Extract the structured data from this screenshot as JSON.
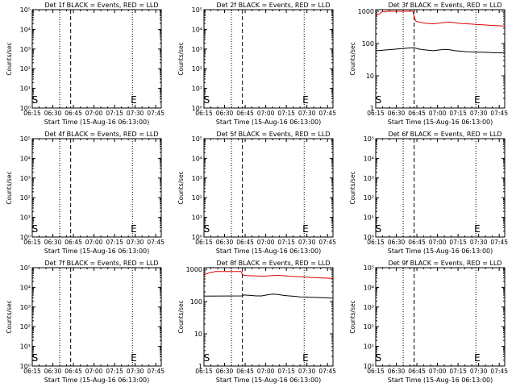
{
  "chart_data": [
    {
      "type": "line",
      "detector": "1f",
      "title": "Det 1f BLACK = Events, RED = LLD",
      "xlabel": "Start Time (15-Aug-16 06:13:00)",
      "ylabel": "Counts/sec",
      "y_log": true,
      "y_ticks": [
        "10⁰",
        "10¹",
        "10²",
        "10³",
        "10⁴",
        "10⁵"
      ],
      "x_ticks": [
        "06:15",
        "06:30",
        "06:45",
        "07:00",
        "07:15",
        "07:30",
        "07:45"
      ],
      "ylim_exp": [
        0,
        5
      ],
      "xlim_min": [
        2,
        96
      ],
      "markers": {
        "S": 4,
        "E": 76
      },
      "vlines": [
        {
          "t": 22,
          "style": "dotted"
        },
        {
          "t": 30,
          "style": "dashed"
        },
        {
          "t": 75,
          "style": "dotted"
        }
      ],
      "series": []
    },
    {
      "type": "line",
      "detector": "2f",
      "title": "Det 2f BLACK = Events, RED = LLD",
      "xlabel": "Start Time (15-Aug-16 06:13:00)",
      "ylabel": "Counts/sec",
      "y_log": true,
      "y_ticks": [
        "10⁰",
        "10¹",
        "10²",
        "10³",
        "10⁴",
        "10⁵"
      ],
      "x_ticks": [
        "06:15",
        "06:30",
        "06:45",
        "07:00",
        "07:15",
        "07:30",
        "07:45"
      ],
      "ylim_exp": [
        0,
        5
      ],
      "xlim_min": [
        2,
        96
      ],
      "markers": {
        "S": 4,
        "E": 76
      },
      "vlines": [
        {
          "t": 22,
          "style": "dotted"
        },
        {
          "t": 30,
          "style": "dashed"
        },
        {
          "t": 75,
          "style": "dotted"
        }
      ],
      "series": []
    },
    {
      "type": "line",
      "detector": "3f",
      "title": "Det 3f BLACK = Events, RED = LLD",
      "xlabel": "Start Time (15-Aug-16 06:13:00)",
      "ylabel": "Counts/sec",
      "y_log": true,
      "y_ticks": [
        "1",
        "10",
        "100",
        "1000"
      ],
      "x_ticks": [
        "06:15",
        "06:30",
        "06:45",
        "07:00",
        "07:15",
        "07:30",
        "07:45"
      ],
      "ylim_exp": [
        0,
        3.05
      ],
      "xlim_min": [
        2,
        96
      ],
      "markers": {
        "S": 4,
        "E": 76
      },
      "vlines": [
        {
          "t": 22,
          "style": "dotted"
        },
        {
          "t": 30,
          "style": "dashed"
        },
        {
          "t": 75,
          "style": "dotted"
        }
      ],
      "series": [
        {
          "color": "#e00000",
          "x": [
            2,
            3,
            5,
            7,
            9,
            10,
            29,
            30,
            31,
            33,
            36,
            40,
            44,
            48,
            52,
            56,
            60,
            64,
            68,
            72,
            76,
            80,
            84,
            88,
            92,
            96
          ],
          "y": [
            700,
            780,
            850,
            1000,
            950,
            1000,
            1000,
            700,
            500,
            470,
            440,
            420,
            410,
            430,
            450,
            460,
            440,
            420,
            410,
            400,
            390,
            380,
            370,
            360,
            355,
            350
          ]
        },
        {
          "color": "#000000",
          "x": [
            2,
            3,
            30,
            31,
            33,
            36,
            40,
            44,
            48,
            52,
            56,
            60,
            64,
            68,
            72,
            76,
            80,
            84,
            88,
            92,
            96
          ],
          "y": [
            62,
            60,
            75,
            72,
            68,
            65,
            62,
            60,
            63,
            66,
            64,
            60,
            58,
            56,
            55,
            54,
            54,
            53,
            52,
            52,
            51
          ]
        }
      ]
    },
    {
      "type": "line",
      "detector": "4f",
      "title": "Det 4f BLACK = Events, RED = LLD",
      "xlabel": "Start Time (15-Aug-16 06:13:00)",
      "ylabel": "Counts/sec",
      "y_log": true,
      "y_ticks": [
        "10⁰",
        "10¹",
        "10²",
        "10³",
        "10⁴",
        "10⁵"
      ],
      "x_ticks": [
        "06:15",
        "06:30",
        "06:45",
        "07:00",
        "07:15",
        "07:30",
        "07:45"
      ],
      "ylim_exp": [
        0,
        5
      ],
      "xlim_min": [
        2,
        96
      ],
      "markers": {
        "S": 4,
        "E": 76
      },
      "vlines": [
        {
          "t": 22,
          "style": "dotted"
        },
        {
          "t": 30,
          "style": "dashed"
        },
        {
          "t": 75,
          "style": "dotted"
        }
      ],
      "series": []
    },
    {
      "type": "line",
      "detector": "5f",
      "title": "Det 5f BLACK = Events, RED = LLD",
      "xlabel": "Start Time (15-Aug-16 06:13:00)",
      "ylabel": "Counts/sec",
      "y_log": true,
      "y_ticks": [
        "10⁰",
        "10¹",
        "10²",
        "10³",
        "10⁴",
        "10⁵"
      ],
      "x_ticks": [
        "06:15",
        "06:30",
        "06:45",
        "07:00",
        "07:15",
        "07:30",
        "07:45"
      ],
      "ylim_exp": [
        0,
        5
      ],
      "xlim_min": [
        2,
        96
      ],
      "markers": {
        "S": 4,
        "E": 76
      },
      "vlines": [
        {
          "t": 22,
          "style": "dotted"
        },
        {
          "t": 30,
          "style": "dashed"
        },
        {
          "t": 75,
          "style": "dotted"
        }
      ],
      "series": []
    },
    {
      "type": "line",
      "detector": "6f",
      "title": "Det 6f BLACK = Events, RED = LLD",
      "xlabel": "Start Time (15-Aug-16 06:13:00)",
      "ylabel": "Counts/sec",
      "y_log": true,
      "y_ticks": [
        "10⁰",
        "10¹",
        "10²",
        "10³",
        "10⁴",
        "10⁵"
      ],
      "x_ticks": [
        "06:15",
        "06:30",
        "06:45",
        "07:00",
        "07:15",
        "07:30",
        "07:45"
      ],
      "ylim_exp": [
        0,
        5
      ],
      "xlim_min": [
        2,
        96
      ],
      "markers": {
        "S": 4,
        "E": 76
      },
      "vlines": [
        {
          "t": 22,
          "style": "dotted"
        },
        {
          "t": 30,
          "style": "dashed"
        },
        {
          "t": 75,
          "style": "dotted"
        }
      ],
      "series": []
    },
    {
      "type": "line",
      "detector": "7f",
      "title": "Det 7f BLACK = Events, RED = LLD",
      "xlabel": "Start Time (15-Aug-16 06:13:00)",
      "ylabel": "Counts/sec",
      "y_log": true,
      "y_ticks": [
        "10⁰",
        "10¹",
        "10²",
        "10³",
        "10⁴",
        "10⁵"
      ],
      "x_ticks": [
        "06:15",
        "06:30",
        "06:45",
        "07:00",
        "07:15",
        "07:30",
        "07:45"
      ],
      "ylim_exp": [
        0,
        5
      ],
      "xlim_min": [
        2,
        96
      ],
      "markers": {
        "S": 4,
        "E": 76
      },
      "vlines": [
        {
          "t": 22,
          "style": "dotted"
        },
        {
          "t": 30,
          "style": "dashed"
        },
        {
          "t": 75,
          "style": "dotted"
        }
      ],
      "series": []
    },
    {
      "type": "line",
      "detector": "8f",
      "title": "Det 8f BLACK = Events, RED = LLD",
      "xlabel": "Start Time (15-Aug-16 06:13:00)",
      "ylabel": "Counts/sec",
      "y_log": true,
      "y_ticks": [
        "1",
        "10",
        "100",
        "1000"
      ],
      "x_ticks": [
        "06:15",
        "06:30",
        "06:45",
        "07:00",
        "07:15",
        "07:30",
        "07:45"
      ],
      "ylim_exp": [
        0,
        3.05
      ],
      "xlim_min": [
        2,
        96
      ],
      "markers": {
        "S": 4,
        "E": 76
      },
      "vlines": [
        {
          "t": 22,
          "style": "dotted"
        },
        {
          "t": 30,
          "style": "dashed"
        },
        {
          "t": 75,
          "style": "dotted"
        }
      ],
      "series": [
        {
          "color": "#e00000",
          "x": [
            2,
            3,
            5,
            7,
            9,
            10,
            29,
            30,
            31,
            33,
            36,
            40,
            44,
            48,
            52,
            56,
            60,
            64,
            68,
            72,
            76,
            80,
            84,
            88,
            92,
            96
          ],
          "y": [
            650,
            700,
            760,
            800,
            820,
            850,
            850,
            700,
            650,
            640,
            630,
            620,
            610,
            620,
            640,
            650,
            630,
            610,
            600,
            590,
            570,
            560,
            550,
            540,
            530,
            520
          ]
        },
        {
          "color": "#000000",
          "x": [
            2,
            3,
            30,
            31,
            33,
            36,
            40,
            44,
            48,
            52,
            56,
            60,
            64,
            68,
            72,
            76,
            80,
            84,
            88,
            92,
            96
          ],
          "y": [
            150,
            148,
            150,
            160,
            158,
            155,
            150,
            150,
            160,
            170,
            165,
            155,
            150,
            145,
            140,
            138,
            136,
            134,
            132,
            130,
            128
          ]
        }
      ]
    },
    {
      "type": "line",
      "detector": "9f",
      "title": "Det 9f BLACK = Events, RED = LLD",
      "xlabel": "Start Time (15-Aug-16 06:13:00)",
      "ylabel": "Counts/sec",
      "y_log": true,
      "y_ticks": [
        "10⁰",
        "10¹",
        "10²",
        "10³",
        "10⁴",
        "10⁵"
      ],
      "x_ticks": [
        "06:15",
        "06:30",
        "06:45",
        "07:00",
        "07:15",
        "07:30",
        "07:45"
      ],
      "ylim_exp": [
        0,
        5
      ],
      "xlim_min": [
        2,
        96
      ],
      "markers": {
        "S": 4,
        "E": 76
      },
      "vlines": [
        {
          "t": 22,
          "style": "dotted"
        },
        {
          "t": 30,
          "style": "dashed"
        },
        {
          "t": 75,
          "style": "dotted"
        }
      ],
      "series": []
    }
  ]
}
